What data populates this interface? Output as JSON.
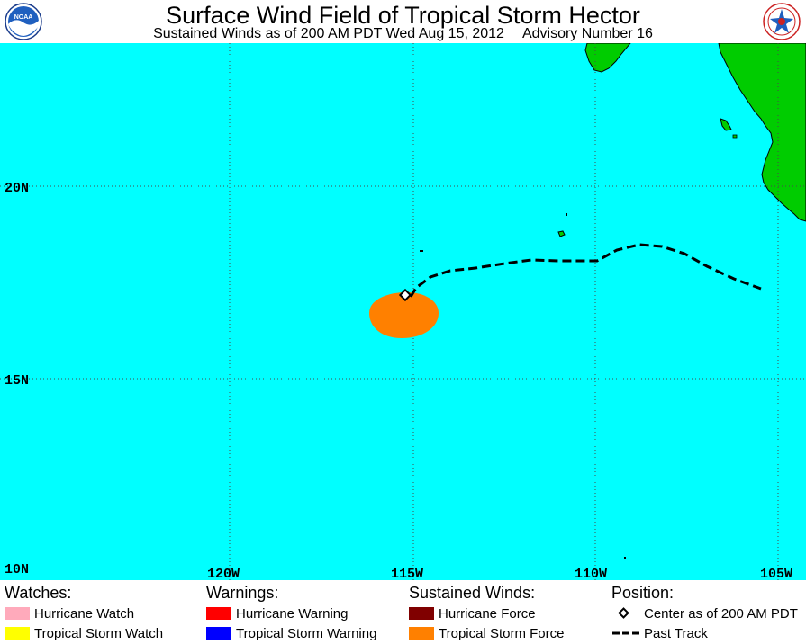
{
  "header": {
    "title": "Surface Wind Field of Tropical Storm Hector",
    "subtitle_left": "Sustained Winds as of 200 AM PDT Wed Aug 15, 2012",
    "subtitle_right": "Advisory Number 16",
    "left_logo_text": "NOAA",
    "right_logo_icon": "nws-logo"
  },
  "map": {
    "lat_labels": [
      "20N",
      "15N",
      "10N"
    ],
    "lon_labels": [
      "120W",
      "115W",
      "110W",
      "105W"
    ],
    "colors": {
      "ocean": "#00ffff",
      "land": "#00cc00",
      "tropical_storm_force": "#ff8000",
      "grid": "#555555",
      "track": "#000000"
    }
  },
  "legend": {
    "watches": {
      "title": "Watches:",
      "items": [
        {
          "label": "Hurricane Watch",
          "color": "#ffaabb"
        },
        {
          "label": "Tropical Storm Watch",
          "color": "#ffff00"
        }
      ]
    },
    "warnings": {
      "title": "Warnings:",
      "items": [
        {
          "label": "Hurricane Warning",
          "color": "#ff0000"
        },
        {
          "label": "Tropical Storm Warning",
          "color": "#0000ff"
        }
      ]
    },
    "winds": {
      "title": "Sustained Winds:",
      "items": [
        {
          "label": "Hurricane Force",
          "color": "#800000"
        },
        {
          "label": "Tropical Storm Force",
          "color": "#ff8000"
        }
      ]
    },
    "position": {
      "title": "Position:",
      "items": [
        {
          "label": "Center as of 200 AM PDT",
          "icon": "diamond-icon"
        },
        {
          "label": "Past Track",
          "icon": "dashed-line-icon"
        }
      ]
    }
  }
}
